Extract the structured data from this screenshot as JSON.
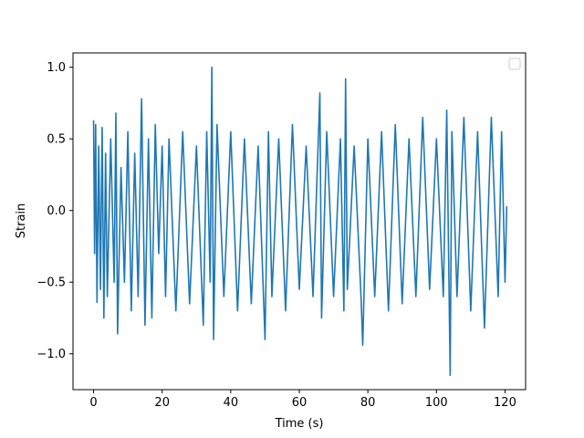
{
  "chart_data": {
    "type": "line",
    "title": "",
    "xlabel": "Time (s)",
    "ylabel": "Strain",
    "xlim": [
      -6,
      126
    ],
    "ylim": [
      -1.25,
      1.1
    ],
    "xticks": [
      0,
      20,
      40,
      60,
      80,
      100,
      120
    ],
    "xtick_labels": [
      "0",
      "20",
      "40",
      "60",
      "80",
      "100",
      "120"
    ],
    "yticks": [
      -1.0,
      -0.5,
      0.0,
      0.5,
      1.0
    ],
    "ytick_labels": [
      "−1.0",
      "−0.5",
      "0.0",
      "0.5",
      "1.0"
    ],
    "grid": false,
    "legend": {
      "placement": "top-right",
      "entries": []
    },
    "series_color": "#1f77b4",
    "series": [
      {
        "x": [
          0,
          0.3,
          0.6,
          1,
          1.5,
          2,
          2.5,
          3,
          3.5,
          4,
          5,
          6,
          6.5,
          7,
          8,
          9,
          10,
          11,
          12,
          13,
          14,
          15,
          16,
          17,
          18,
          19,
          20,
          21,
          22,
          24,
          26,
          28,
          30,
          32,
          33,
          34,
          34.5,
          35,
          36,
          38,
          40,
          42,
          44,
          46,
          48,
          50,
          51,
          52,
          54,
          56,
          58,
          60,
          62,
          64,
          66,
          66.5,
          68,
          70,
          72,
          73,
          73.5,
          74,
          76,
          78,
          78.5,
          80,
          82,
          84,
          86,
          88,
          90,
          92,
          94,
          96,
          98,
          100,
          102,
          103,
          104,
          104.5,
          106,
          108,
          110,
          112,
          114,
          116,
          118,
          119,
          120,
          120.5
        ],
        "y": [
          0.63,
          -0.3,
          0.6,
          -0.64,
          0.45,
          -0.55,
          0.58,
          -0.75,
          0.4,
          -0.6,
          0.5,
          -0.5,
          0.68,
          -0.86,
          0.3,
          -0.5,
          0.55,
          -0.7,
          0.4,
          -0.6,
          0.78,
          -0.8,
          0.5,
          -0.75,
          0.6,
          -0.3,
          0.45,
          -0.6,
          0.5,
          -0.7,
          0.55,
          -0.65,
          0.45,
          -0.8,
          0.55,
          -0.5,
          1.0,
          -0.9,
          0.6,
          -0.6,
          0.55,
          -0.7,
          0.5,
          -0.65,
          0.45,
          -0.9,
          0.55,
          -0.6,
          0.5,
          -0.7,
          0.6,
          -0.55,
          0.45,
          -0.6,
          0.82,
          -0.75,
          0.55,
          -0.6,
          0.5,
          -0.7,
          0.92,
          -0.55,
          0.45,
          -0.6,
          -0.94,
          0.5,
          -0.6,
          0.55,
          -0.7,
          0.6,
          -0.65,
          0.5,
          -0.6,
          0.65,
          -0.55,
          0.5,
          -0.6,
          0.7,
          -1.15,
          0.55,
          -0.6,
          0.65,
          -0.7,
          0.55,
          -0.82,
          0.65,
          -0.6,
          0.55,
          -0.5,
          0.03
        ]
      }
    ]
  }
}
